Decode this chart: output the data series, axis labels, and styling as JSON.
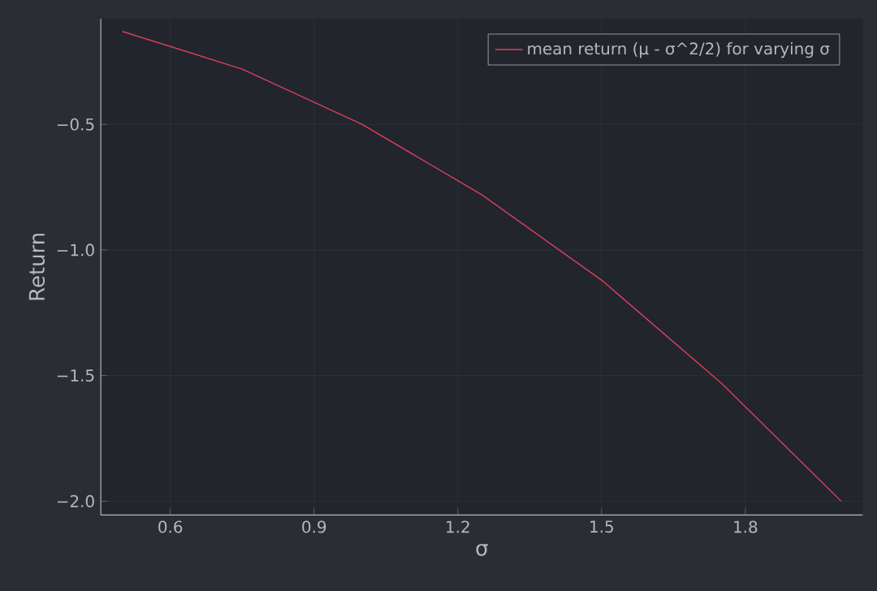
{
  "chart_data": {
    "type": "line",
    "xlabel": "σ",
    "ylabel": "Return",
    "x": [
      0.5,
      0.75,
      1.0,
      1.25,
      1.5,
      1.75,
      2.0
    ],
    "series": [
      {
        "name": "mean return (μ - σ^2/2) for varying σ",
        "color": "#d9405f",
        "values": [
          -0.13,
          -0.28,
          -0.5,
          -0.78,
          -1.12,
          -1.53,
          -2.0
        ]
      }
    ],
    "xlim": [
      0.455,
      2.045
    ],
    "ylim": [
      -2.055,
      -0.08
    ],
    "xticks": [
      0.6,
      0.9,
      1.2,
      1.5,
      1.8
    ],
    "yticks": [
      {
        "value": -2.0,
        "label": "−2.0"
      },
      {
        "value": -1.5,
        "label": "−1.5"
      },
      {
        "value": -1.0,
        "label": "−1.0"
      },
      {
        "value": -0.5,
        "label": "−0.5"
      }
    ],
    "grid": true,
    "legend": "top right",
    "marker": "none",
    "line_style": "solid"
  }
}
